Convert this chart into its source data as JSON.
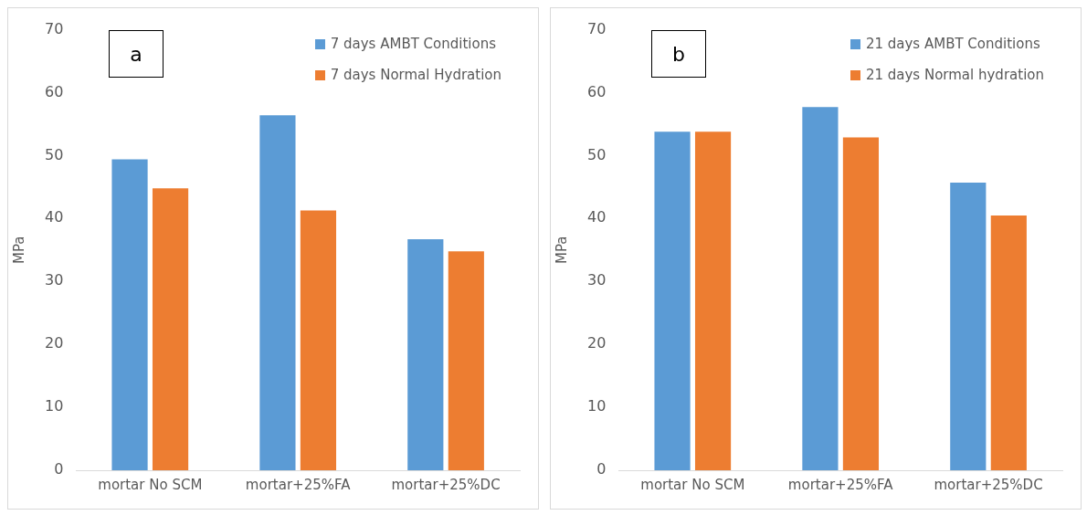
{
  "chart_data": [
    {
      "type": "bar",
      "annotations": [
        "a"
      ],
      "ylabel": "MPa",
      "categories": [
        "mortar No SCM",
        "mortar+25%FA",
        "mortar+25%DC"
      ],
      "series": [
        {
          "name": "7 days AMBT Conditions",
          "color": "#5b9bd5",
          "values": [
            49.4,
            56.4,
            36.7
          ]
        },
        {
          "name": "7 days Normal Hydration",
          "color": "#ed7d31",
          "values": [
            44.8,
            41.3,
            34.8
          ]
        }
      ],
      "ylim": [
        0,
        70
      ],
      "yticks": [
        0,
        10,
        20,
        30,
        40,
        50,
        60,
        70
      ],
      "grid": false,
      "legend": "top right"
    },
    {
      "type": "bar",
      "annotations": [
        "b"
      ],
      "ylabel": "MPa",
      "categories": [
        "mortar No SCM",
        "mortar+25%FA",
        "mortar+25%DC"
      ],
      "series": [
        {
          "name": "21 days AMBT Conditions",
          "color": "#5b9bd5",
          "values": [
            53.8,
            57.7,
            45.7
          ]
        },
        {
          "name": "21 days Normal hydration",
          "color": "#ed7d31",
          "values": [
            53.8,
            52.9,
            40.5
          ]
        }
      ],
      "ylim": [
        0,
        70
      ],
      "yticks": [
        0,
        10,
        20,
        30,
        40,
        50,
        60,
        70
      ],
      "grid": false,
      "legend": "top right"
    }
  ]
}
